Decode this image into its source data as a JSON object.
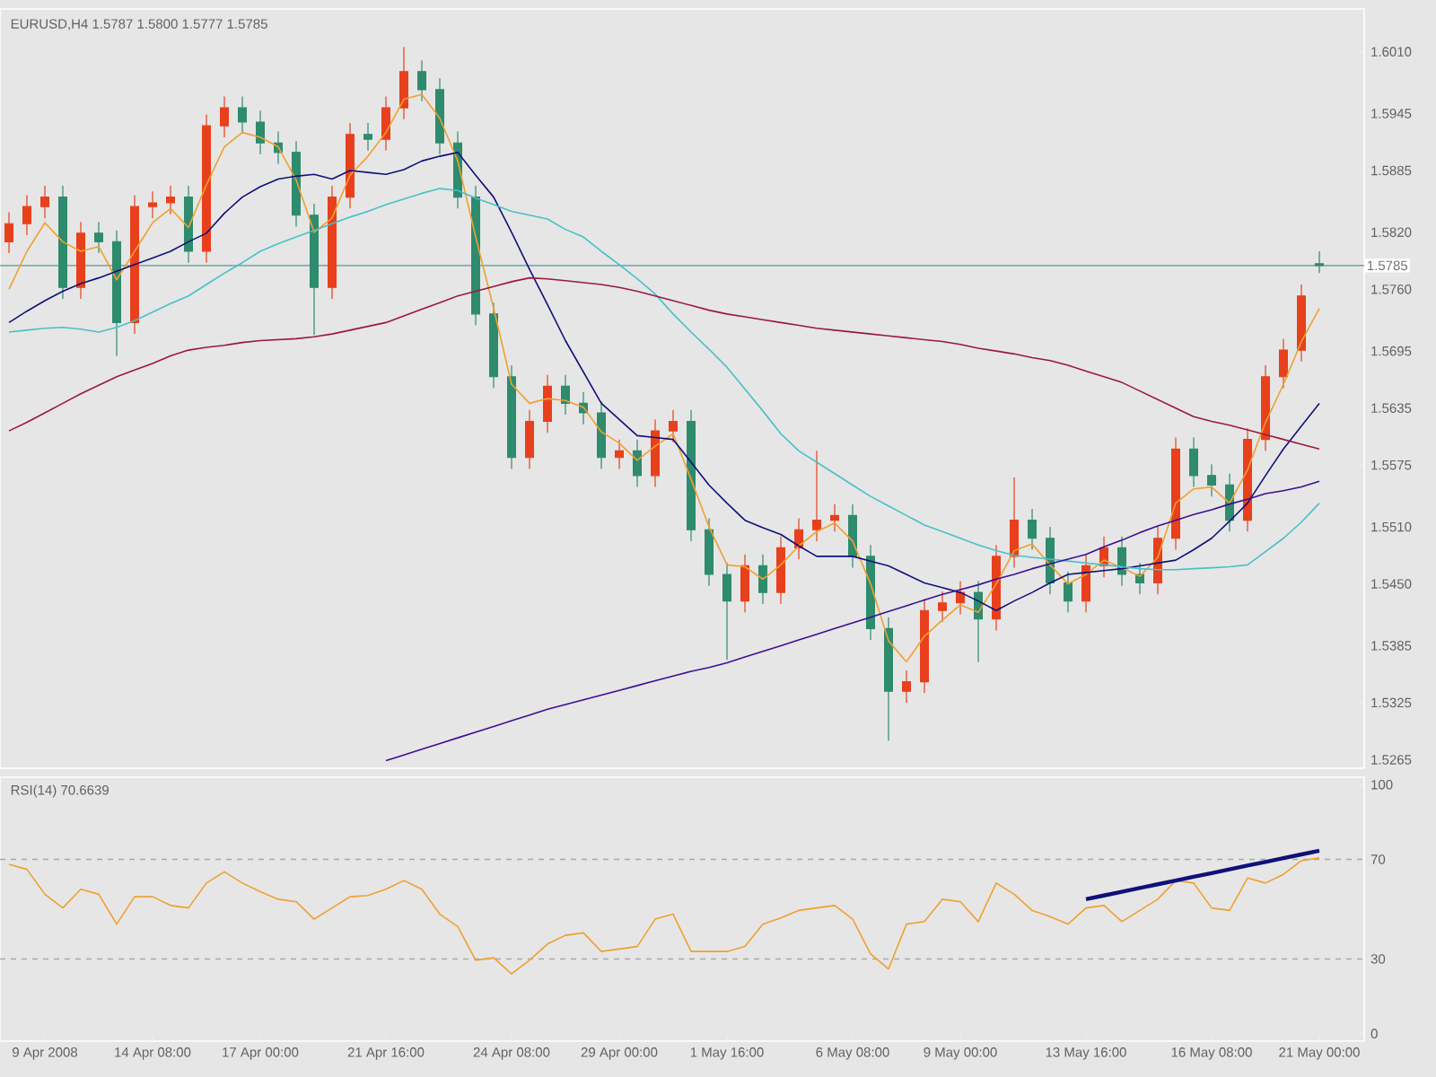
{
  "chart_data": [
    {
      "type": "candlestick",
      "title": "EURUSD,H4 1.5787 1.5800 1.5777 1.5785",
      "tick_labels": "y",
      "categories": [
        null,
        null,
        null,
        null,
        null,
        null,
        null,
        null,
        null,
        null,
        null,
        null,
        null,
        null,
        null,
        null,
        null,
        null,
        null,
        null,
        null,
        null,
        null,
        null,
        null,
        null,
        null,
        null,
        null,
        null,
        null,
        null,
        null,
        null,
        null,
        null,
        null,
        null,
        null,
        null,
        null,
        null,
        null,
        null,
        null,
        null,
        null,
        null,
        null,
        null,
        null,
        null,
        null,
        null,
        null,
        null,
        null,
        null,
        null,
        null,
        null,
        null,
        null,
        null,
        null,
        null,
        null,
        null,
        null,
        null,
        null,
        null,
        null,
        null
      ],
      "ohlc": [
        [
          1.581,
          1.5841,
          1.5798,
          1.5829
        ],
        [
          1.5829,
          1.5859,
          1.5817,
          1.5847
        ],
        [
          1.5847,
          1.5869,
          1.5835,
          1.5857
        ],
        [
          1.5857,
          1.5869,
          1.575,
          1.5762
        ],
        [
          1.5762,
          1.5831,
          1.575,
          1.5819
        ],
        [
          1.5819,
          1.5831,
          1.5798,
          1.581
        ],
        [
          1.581,
          1.5822,
          1.569,
          1.5725
        ],
        [
          1.5725,
          1.5859,
          1.5713,
          1.5847
        ],
        [
          1.5847,
          1.5863,
          1.5835,
          1.5851
        ],
        [
          1.5851,
          1.5869,
          1.5839,
          1.5857
        ],
        [
          1.5857,
          1.5869,
          1.5788,
          1.58
        ],
        [
          1.58,
          1.5944,
          1.5788,
          1.5932
        ],
        [
          1.5932,
          1.5963,
          1.592,
          1.5951
        ],
        [
          1.5951,
          1.5963,
          1.5924,
          1.5936
        ],
        [
          1.5936,
          1.5948,
          1.5902,
          1.5914
        ],
        [
          1.5914,
          1.5926,
          1.5892,
          1.5904
        ],
        [
          1.5904,
          1.5916,
          1.5826,
          1.5838
        ],
        [
          1.5838,
          1.585,
          1.5712,
          1.5762
        ],
        [
          1.5762,
          1.5869,
          1.575,
          1.5857
        ],
        [
          1.5857,
          1.5935,
          1.5845,
          1.5923
        ],
        [
          1.5923,
          1.5935,
          1.5906,
          1.5918
        ],
        [
          1.5918,
          1.5963,
          1.5906,
          1.5951
        ],
        [
          1.5951,
          1.6015,
          1.5939,
          1.5989
        ],
        [
          1.5989,
          1.6001,
          1.5958,
          1.597
        ],
        [
          1.597,
          1.5982,
          1.5902,
          1.5914
        ],
        [
          1.5914,
          1.5926,
          1.5845,
          1.5857
        ],
        [
          1.5857,
          1.5869,
          1.5722,
          1.5734
        ],
        [
          1.5734,
          1.5746,
          1.5656,
          1.5668
        ],
        [
          1.5668,
          1.568,
          1.5571,
          1.5583
        ],
        [
          1.5583,
          1.5633,
          1.5571,
          1.5621
        ],
        [
          1.5621,
          1.567,
          1.5609,
          1.5658
        ],
        [
          1.5658,
          1.567,
          1.5628,
          1.564
        ],
        [
          1.564,
          1.5652,
          1.5618,
          1.563
        ],
        [
          1.563,
          1.5642,
          1.5571,
          1.5583
        ],
        [
          1.5583,
          1.5602,
          1.5571,
          1.559
        ],
        [
          1.559,
          1.5602,
          1.5552,
          1.5564
        ],
        [
          1.5564,
          1.5623,
          1.5552,
          1.5611
        ],
        [
          1.5611,
          1.5633,
          1.5599,
          1.5621
        ],
        [
          1.5621,
          1.5633,
          1.5495,
          1.5507
        ],
        [
          1.5507,
          1.5519,
          1.5448,
          1.546
        ],
        [
          1.546,
          1.5472,
          1.537,
          1.5432
        ],
        [
          1.5432,
          1.5481,
          1.542,
          1.5469
        ],
        [
          1.5469,
          1.5481,
          1.5429,
          1.5441
        ],
        [
          1.5441,
          1.55,
          1.5429,
          1.5488
        ],
        [
          1.5488,
          1.5519,
          1.5476,
          1.5507
        ],
        [
          1.5507,
          1.559,
          1.5495,
          1.5517
        ],
        [
          1.5517,
          1.5534,
          1.5505,
          1.5522
        ],
        [
          1.5522,
          1.5534,
          1.5467,
          1.5479
        ],
        [
          1.5479,
          1.5491,
          1.5391,
          1.5403
        ],
        [
          1.5403,
          1.5415,
          1.5285,
          1.5337
        ],
        [
          1.5337,
          1.5359,
          1.5325,
          1.5347
        ],
        [
          1.5347,
          1.5434,
          1.5335,
          1.5422
        ],
        [
          1.5422,
          1.5442,
          1.541,
          1.543
        ],
        [
          1.543,
          1.5453,
          1.5418,
          1.5441
        ],
        [
          1.5441,
          1.5453,
          1.5368,
          1.5413
        ],
        [
          1.5413,
          1.5491,
          1.5401,
          1.5479
        ],
        [
          1.5479,
          1.5562,
          1.5467,
          1.5517
        ],
        [
          1.5517,
          1.5529,
          1.5486,
          1.5498
        ],
        [
          1.5498,
          1.551,
          1.5439,
          1.5451
        ],
        [
          1.5451,
          1.5463,
          1.542,
          1.5432
        ],
        [
          1.5432,
          1.5481,
          1.542,
          1.5469
        ],
        [
          1.5469,
          1.55,
          1.5457,
          1.5488
        ],
        [
          1.5488,
          1.55,
          1.5448,
          1.546
        ],
        [
          1.546,
          1.5472,
          1.5439,
          1.5451
        ],
        [
          1.5451,
          1.551,
          1.5439,
          1.5498
        ],
        [
          1.5498,
          1.5604,
          1.5486,
          1.5592
        ],
        [
          1.5592,
          1.5604,
          1.5552,
          1.5564
        ],
        [
          1.5564,
          1.5576,
          1.5542,
          1.5554
        ],
        [
          1.5554,
          1.5566,
          1.5505,
          1.5517
        ],
        [
          1.5517,
          1.5614,
          1.5505,
          1.5602
        ],
        [
          1.5602,
          1.568,
          1.559,
          1.5668
        ],
        [
          1.5668,
          1.5708,
          1.5656,
          1.5696
        ],
        [
          1.5696,
          1.5765,
          1.5684,
          1.5753
        ],
        [
          1.5787,
          1.58,
          1.5777,
          1.5785
        ]
      ],
      "series": [
        {
          "type": "line",
          "color": "#f0a030",
          "values": [
            1.576,
            1.58,
            1.583,
            1.581,
            1.58,
            1.5805,
            1.577,
            1.58,
            1.583,
            1.5845,
            1.5825,
            1.587,
            1.591,
            1.5925,
            1.592,
            1.591,
            1.5875,
            1.582,
            1.5835,
            1.588,
            1.59,
            1.5925,
            1.596,
            1.5965,
            1.594,
            1.5895,
            1.5815,
            1.574,
            1.566,
            1.564,
            1.5645,
            1.5643,
            1.5636,
            1.561,
            1.5598,
            1.558,
            1.5595,
            1.5608,
            1.556,
            1.551,
            1.547,
            1.5468,
            1.5455,
            1.547,
            1.549,
            1.5505,
            1.5514,
            1.5495,
            1.545,
            1.539,
            1.5368,
            1.5395,
            1.5412,
            1.5428,
            1.542,
            1.545,
            1.5485,
            1.5492,
            1.547,
            1.545,
            1.546,
            1.5475,
            1.5467,
            1.5458,
            1.5478,
            1.5535,
            1.555,
            1.5552,
            1.5535,
            1.557,
            1.562,
            1.566,
            1.5705,
            1.574
          ]
        },
        {
          "type": "line",
          "color": "#10107a",
          "values": [
            1.5725,
            1.5737,
            1.5748,
            1.5758,
            1.5766,
            1.5772,
            1.5779,
            1.5786,
            1.5793,
            1.58,
            1.581,
            1.5819,
            1.584,
            1.5857,
            1.5868,
            1.5876,
            1.5879,
            1.5881,
            1.5876,
            1.5885,
            1.5883,
            1.5881,
            1.5886,
            1.5895,
            1.59,
            1.5904,
            1.588,
            1.5857,
            1.582,
            1.5781,
            1.5744,
            1.5706,
            1.5673,
            1.564,
            1.5623,
            1.5606,
            1.5604,
            1.5602,
            1.5578,
            1.5554,
            1.5535,
            1.5517,
            1.5509,
            1.5502,
            1.549,
            1.5479,
            1.5479,
            1.5479,
            1.5474,
            1.5469,
            1.546,
            1.5451,
            1.5446,
            1.5441,
            1.5432,
            1.5422,
            1.5432,
            1.5441,
            1.5451,
            1.546,
            1.5462,
            1.5464,
            1.5466,
            1.5469,
            1.5472,
            1.5475,
            1.5486,
            1.5498,
            1.5516,
            1.5535,
            1.5564,
            1.5592,
            1.5616,
            1.564
          ]
        },
        {
          "type": "line",
          "color": "#48c0c8",
          "values": [
            1.5715,
            1.5717,
            1.5719,
            1.572,
            1.5718,
            1.5715,
            1.572,
            1.5727,
            1.5736,
            1.5745,
            1.5753,
            1.5765,
            1.5777,
            1.5788,
            1.58,
            1.5808,
            1.5815,
            1.5822,
            1.5829,
            1.5836,
            1.5842,
            1.5849,
            1.5855,
            1.5861,
            1.5866,
            1.5864,
            1.5856,
            1.5849,
            1.5842,
            1.5838,
            1.5834,
            1.5823,
            1.5815,
            1.58,
            1.5786,
            1.5771,
            1.5755,
            1.5734,
            1.5715,
            1.5697,
            1.5678,
            1.5655,
            1.5632,
            1.5608,
            1.559,
            1.5578,
            1.5566,
            1.5554,
            1.5542,
            1.5532,
            1.5522,
            1.5512,
            1.5505,
            1.5498,
            1.5491,
            1.5485,
            1.548,
            1.5478,
            1.5476,
            1.5474,
            1.5472,
            1.547,
            1.5468,
            1.5466,
            1.5465,
            1.5465,
            1.5466,
            1.5467,
            1.5468,
            1.547,
            1.5484,
            1.5498,
            1.5515,
            1.5535
          ]
        },
        {
          "type": "line",
          "color": "#9a1a3a",
          "values": [
            1.5611,
            1.562,
            1.563,
            1.564,
            1.565,
            1.5659,
            1.5668,
            1.5675,
            1.5682,
            1.569,
            1.5696,
            1.5699,
            1.5701,
            1.5704,
            1.5706,
            1.5707,
            1.5708,
            1.571,
            1.5713,
            1.5717,
            1.5721,
            1.5725,
            1.5732,
            1.5739,
            1.5746,
            1.5753,
            1.5758,
            1.5763,
            1.5768,
            1.5772,
            1.5771,
            1.5769,
            1.5767,
            1.5765,
            1.5762,
            1.5758,
            1.5753,
            1.5748,
            1.5743,
            1.5738,
            1.5734,
            1.5731,
            1.5728,
            1.5725,
            1.5722,
            1.5719,
            1.5717,
            1.5715,
            1.5713,
            1.5711,
            1.5709,
            1.5707,
            1.5705,
            1.5702,
            1.5698,
            1.5695,
            1.5692,
            1.5688,
            1.5685,
            1.568,
            1.5674,
            1.5668,
            1.5662,
            1.5653,
            1.5644,
            1.5635,
            1.5626,
            1.5621,
            1.5617,
            1.5612,
            1.5607,
            1.5602,
            1.5597,
            1.5592
          ]
        },
        {
          "type": "line",
          "color": "#3a1090",
          "values": [
            null,
            null,
            null,
            null,
            null,
            null,
            null,
            null,
            null,
            null,
            null,
            null,
            null,
            null,
            null,
            null,
            null,
            null,
            null,
            null,
            null,
            1.5264,
            1.527,
            1.5276,
            1.5282,
            1.5288,
            1.5294,
            1.53,
            1.5306,
            1.5312,
            1.5318,
            1.5323,
            1.5328,
            1.5333,
            1.5338,
            1.5343,
            1.5348,
            1.5353,
            1.5358,
            1.5362,
            1.5367,
            1.5373,
            1.5379,
            1.5385,
            1.5391,
            1.5397,
            1.5403,
            1.5409,
            1.5415,
            1.5421,
            1.5427,
            1.5433,
            1.5439,
            1.5444,
            1.5449,
            1.5455,
            1.546,
            1.5466,
            1.5471,
            1.5476,
            1.5481,
            1.5489,
            1.5496,
            1.5504,
            1.5511,
            1.5517,
            1.5523,
            1.5528,
            1.5534,
            1.5539,
            1.5545,
            1.5548,
            1.5552,
            1.5558
          ]
        }
      ],
      "ylim": [
        1.5256,
        1.6055
      ],
      "yticks": [
        {
          "value": 1.601,
          "label": "1.6010"
        },
        {
          "value": 1.5945,
          "label": "1.5945"
        },
        {
          "value": 1.5885,
          "label": "1.5885"
        },
        {
          "value": 1.582,
          "label": "1.5820"
        },
        {
          "value": 1.576,
          "label": "1.5760"
        },
        {
          "value": 1.5695,
          "label": "1.5695"
        },
        {
          "value": 1.5635,
          "label": "1.5635"
        },
        {
          "value": 1.5575,
          "label": "1.5575"
        },
        {
          "value": 1.551,
          "label": "1.5510"
        },
        {
          "value": 1.545,
          "label": "1.5450"
        },
        {
          "value": 1.5385,
          "label": "1.5385"
        },
        {
          "value": 1.5325,
          "label": "1.5325"
        },
        {
          "value": 1.5265,
          "label": "1.5265"
        }
      ],
      "ref_lines": [
        {
          "axis": "y",
          "value": 1.5785,
          "label": "1.5785",
          "color": "#4c9a96"
        }
      ]
    },
    {
      "type": "line",
      "title": "RSI(14) 70.6639",
      "categories": [
        null,
        null,
        "9 Apr 2008",
        null,
        null,
        null,
        null,
        null,
        "14 Apr 08:00",
        null,
        null,
        null,
        null,
        null,
        "17 Apr 00:00",
        null,
        null,
        null,
        null,
        null,
        null,
        "21 Apr 16:00",
        null,
        null,
        null,
        null,
        null,
        null,
        "24 Apr 08:00",
        null,
        null,
        null,
        null,
        null,
        "29 Apr 00:00",
        null,
        null,
        null,
        null,
        null,
        "1 May 16:00",
        null,
        null,
        null,
        null,
        null,
        null,
        "6 May 08:00",
        null,
        null,
        null,
        null,
        null,
        "9 May 00:00",
        null,
        null,
        null,
        null,
        null,
        null,
        "13 May 16:00",
        null,
        null,
        null,
        null,
        null,
        null,
        "16 May 08:00",
        null,
        null,
        null,
        null,
        null,
        "21 May 00:00"
      ],
      "series": [
        {
          "color": "#f0a030",
          "values": [
            68,
            66,
            56,
            50.5,
            58,
            56,
            44,
            55,
            55,
            51.5,
            50.5,
            60.5,
            65,
            60.5,
            57,
            54,
            53,
            46,
            50.5,
            55,
            55.5,
            58,
            61.5,
            58,
            48,
            43,
            29.5,
            30.5,
            24,
            29.5,
            36,
            39.5,
            40.5,
            33,
            34,
            35,
            46,
            48,
            33,
            33,
            33,
            35,
            44,
            46.5,
            49.5,
            50.5,
            51.5,
            46,
            32,
            26,
            44,
            45,
            54,
            53,
            45,
            60.5,
            56,
            49.5,
            47,
            44,
            50.5,
            51.5,
            45,
            49.5,
            54,
            61.5,
            60.5,
            50.5,
            49.5,
            62.5,
            60.5,
            64,
            69.5,
            70.6
          ]
        },
        {
          "color": "#10107a",
          "values": [
            null,
            null,
            null,
            null,
            null,
            null,
            null,
            null,
            null,
            null,
            null,
            null,
            null,
            null,
            null,
            null,
            null,
            null,
            null,
            null,
            null,
            null,
            null,
            null,
            null,
            null,
            null,
            null,
            null,
            null,
            null,
            null,
            null,
            null,
            null,
            null,
            null,
            null,
            null,
            null,
            null,
            null,
            null,
            null,
            null,
            null,
            null,
            null,
            null,
            null,
            null,
            null,
            null,
            null,
            null,
            null,
            null,
            null,
            null,
            null,
            54,
            55.5,
            57,
            58.5,
            60,
            61.5,
            63,
            64.5,
            66,
            67.5,
            69,
            70.5,
            72,
            73.5
          ]
        }
      ],
      "ylim": [
        -3,
        103
      ],
      "yticks": [
        0,
        30,
        70,
        100
      ],
      "ref_lines": [
        {
          "axis": "y",
          "value": 70,
          "color": "#a8a8a8",
          "line_style": "dashed"
        },
        {
          "axis": "y",
          "value": 30,
          "color": "#a8a8a8",
          "line_style": "dashed"
        }
      ]
    }
  ]
}
